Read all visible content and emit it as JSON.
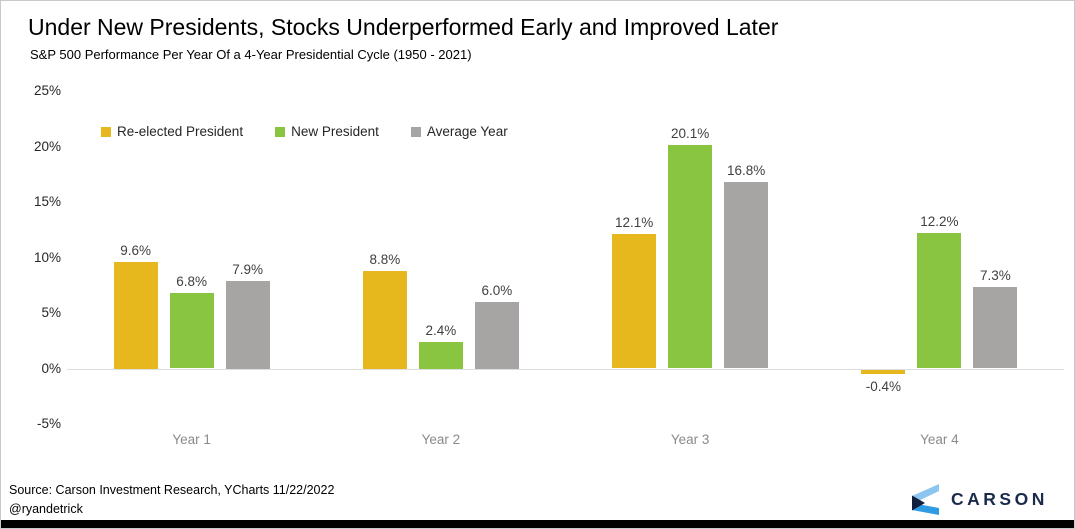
{
  "title": "Under New Presidents, Stocks Underperformed Early and Improved Later",
  "subtitle": "S&P 500 Performance Per Year Of a 4-Year Presidential Cycle (1950 - 2021)",
  "chart_data": {
    "type": "bar",
    "categories": [
      "Year 1",
      "Year 2",
      "Year 3",
      "Year 4"
    ],
    "series": [
      {
        "name": "Re-elected President",
        "color": "#E7B71E",
        "values": [
          9.6,
          8.8,
          12.1,
          -0.4
        ],
        "labels": [
          "9.6%",
          "8.8%",
          "12.1%",
          "-0.4%"
        ]
      },
      {
        "name": "New President",
        "color": "#89C540",
        "values": [
          6.8,
          2.4,
          20.1,
          12.2
        ],
        "labels": [
          "6.8%",
          "2.4%",
          "20.1%",
          "12.2%"
        ]
      },
      {
        "name": "Average Year",
        "color": "#A6A5A3",
        "values": [
          7.9,
          6.0,
          16.8,
          7.3
        ],
        "labels": [
          "7.9%",
          "6.0%",
          "16.8%",
          "7.3%"
        ]
      }
    ],
    "ylim": [
      -5,
      25
    ],
    "ytick_values": [
      25,
      20,
      15,
      10,
      5,
      0,
      -5
    ],
    "ytick_labels": [
      "25%",
      "20%",
      "15%",
      "10%",
      "5%",
      "0%",
      "-5%"
    ],
    "grid": false,
    "legend_position": "top-left",
    "baseline_color": "#DEDEDE"
  },
  "footer": {
    "source_line1": "Source: Carson Investment Research, YCharts 11/22/2022",
    "source_line2": "@ryandetrick"
  },
  "logo": {
    "text": "CARSON",
    "text_color": "#1B2B4B",
    "icon_light_blue": "#8BC5F0",
    "icon_blue": "#2F9BE3",
    "icon_navy": "#101F3C"
  }
}
